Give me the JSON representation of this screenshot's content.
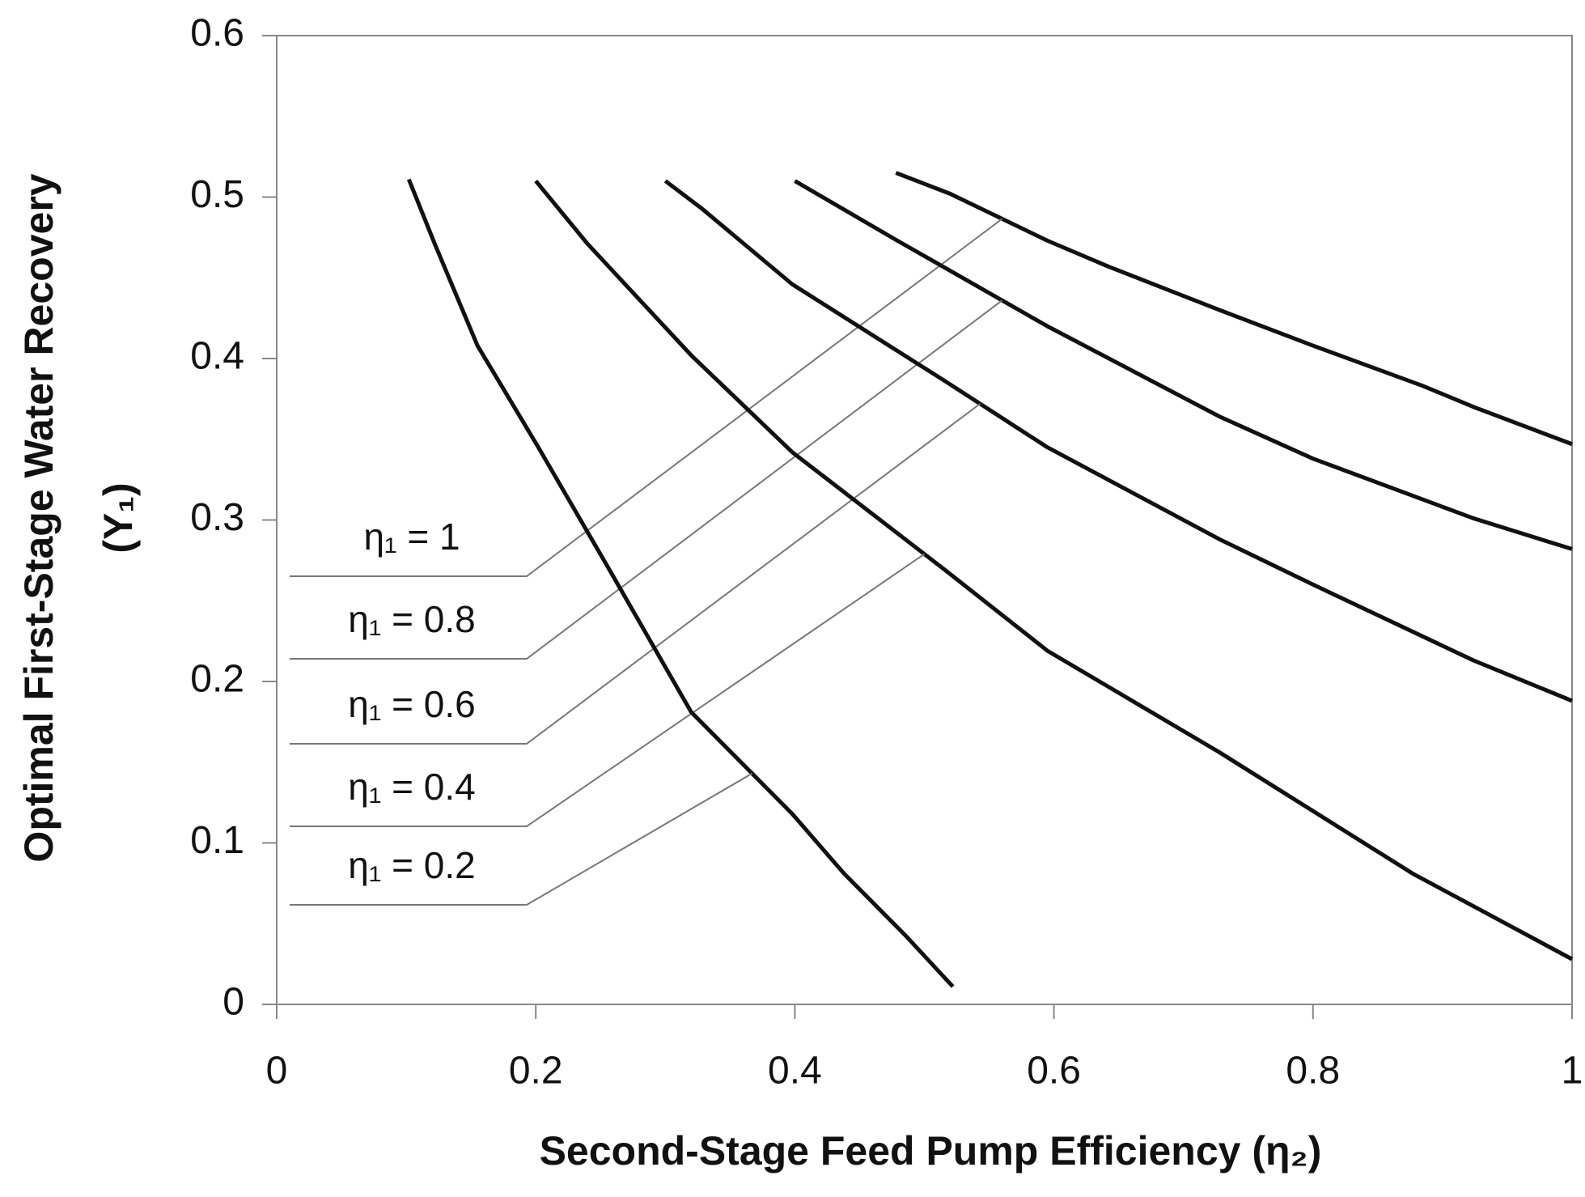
{
  "chart_data": {
    "type": "line",
    "x_label": "Second-Stage Feed Pump Efficiency (η₂)",
    "y_label": [
      "Optimal First-Stage Water Recovery",
      "(Y₁)"
    ],
    "xlim": [
      0,
      1
    ],
    "xticks": [
      0,
      0.2,
      0.4,
      0.6,
      0.8,
      1
    ],
    "ylim": [
      0,
      0.6
    ],
    "yticks": [
      0,
      0.1,
      0.2,
      0.3,
      0.4,
      0.5,
      0.6
    ],
    "grid": false,
    "series": [
      {
        "name": "η₁ = 1",
        "color": "#111111",
        "x": [
          0.478,
          0.52,
          0.595,
          0.642,
          0.728,
          0.8,
          0.885,
          0.924,
          1.0
        ],
        "values": [
          0.515,
          0.502,
          0.473,
          0.457,
          0.43,
          0.408,
          0.383,
          0.37,
          0.347
        ]
      },
      {
        "name": "η₁ = 0.8",
        "color": "#111111",
        "x": [
          0.4,
          0.477,
          0.595,
          0.728,
          0.8,
          0.924,
          1.0
        ],
        "values": [
          0.51,
          0.474,
          0.42,
          0.364,
          0.338,
          0.301,
          0.282
        ]
      },
      {
        "name": "η₁ = 0.6",
        "color": "#111111",
        "x": [
          0.3,
          0.328,
          0.398,
          0.516,
          0.595,
          0.728,
          0.8,
          0.924,
          1.0
        ],
        "values": [
          0.51,
          0.493,
          0.446,
          0.386,
          0.345,
          0.288,
          0.26,
          0.213,
          0.188
        ]
      },
      {
        "name": "η₁ = 0.4",
        "color": "#111111",
        "x": [
          0.2,
          0.24,
          0.32,
          0.398,
          0.516,
          0.595,
          0.728,
          0.877,
          1.0
        ],
        "values": [
          0.51,
          0.471,
          0.402,
          0.342,
          0.269,
          0.219,
          0.156,
          0.081,
          0.028
        ]
      },
      {
        "name": "η₁ = 0.2",
        "color": "#111111",
        "x": [
          0.102,
          0.122,
          0.155,
          0.202,
          0.257,
          0.32,
          0.398,
          0.438,
          0.485,
          0.522
        ],
        "values": [
          0.511,
          0.471,
          0.408,
          0.345,
          0.269,
          0.181,
          0.118,
          0.081,
          0.043,
          0.011
        ]
      }
    ]
  }
}
